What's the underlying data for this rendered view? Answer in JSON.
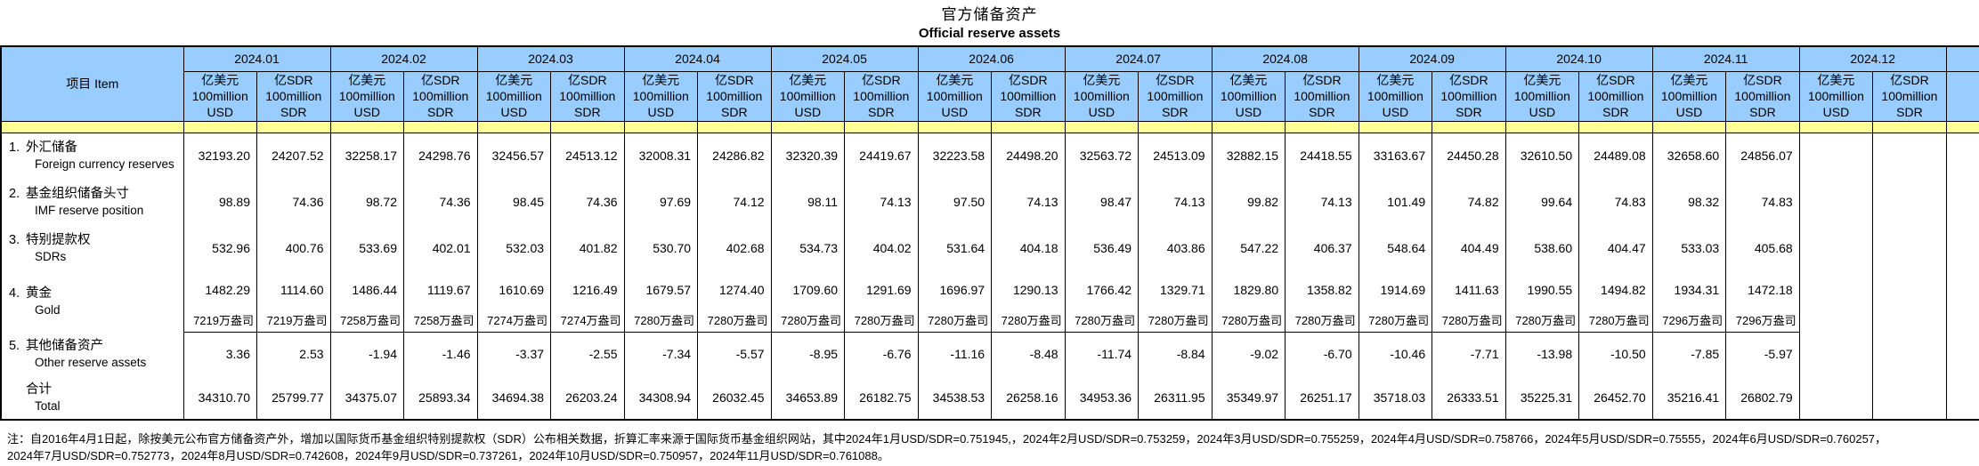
{
  "title_zh": "官方储备资产",
  "title_en": "Official reserve assets",
  "colors": {
    "header_blue": "#99CCFF",
    "band_yellow": "#FFFF99",
    "border": "#000000"
  },
  "table": {
    "item_header": "项目  Item",
    "months": [
      "2024.01",
      "2024.02",
      "2024.03",
      "2024.04",
      "2024.05",
      "2024.06",
      "2024.07",
      "2024.08",
      "2024.09",
      "2024.10",
      "2024.11",
      "2024.12"
    ],
    "usd_unit": [
      "亿美元",
      "100million",
      "USD"
    ],
    "sdr_unit": [
      "亿SDR",
      "100million",
      "SDR"
    ],
    "rows": [
      {
        "num": "1.",
        "zh": "外汇储备",
        "en": "Foreign currency reserves",
        "values": [
          "32193.20",
          "24207.52",
          "32258.17",
          "24298.76",
          "32456.57",
          "24513.12",
          "32008.31",
          "24286.82",
          "32320.39",
          "24419.67",
          "32223.58",
          "24498.20",
          "32563.72",
          "24513.09",
          "32882.15",
          "24418.55",
          "33163.67",
          "24450.28",
          "32610.50",
          "24489.08",
          "32658.60",
          "24856.07",
          "",
          ""
        ]
      },
      {
        "num": "2.",
        "zh": "基金组织储备头寸",
        "en": "IMF reserve position",
        "values": [
          "98.89",
          "74.36",
          "98.72",
          "74.36",
          "98.45",
          "74.36",
          "97.69",
          "74.12",
          "98.11",
          "74.13",
          "97.50",
          "74.13",
          "98.47",
          "74.13",
          "99.82",
          "74.13",
          "101.49",
          "74.82",
          "99.64",
          "74.83",
          "98.32",
          "74.83",
          "",
          ""
        ]
      },
      {
        "num": "3.",
        "zh": "特别提款权",
        "en": "SDRs",
        "values": [
          "532.96",
          "400.76",
          "533.69",
          "402.01",
          "532.03",
          "401.82",
          "530.70",
          "402.68",
          "534.73",
          "404.02",
          "531.64",
          "404.18",
          "536.49",
          "403.86",
          "547.22",
          "406.37",
          "548.64",
          "404.49",
          "538.60",
          "404.47",
          "533.03",
          "405.68",
          "",
          ""
        ]
      },
      {
        "num": "4.",
        "zh": "黄金",
        "en": "Gold",
        "values": [
          "1482.29",
          "1114.60",
          "1486.44",
          "1119.67",
          "1610.69",
          "1216.49",
          "1679.57",
          "1274.40",
          "1709.60",
          "1291.69",
          "1696.97",
          "1290.13",
          "1766.42",
          "1329.71",
          "1829.80",
          "1358.82",
          "1914.69",
          "1411.63",
          "1990.55",
          "1494.82",
          "1934.31",
          "1472.18",
          "",
          ""
        ],
        "ounces": [
          "7219万盎司",
          "7219万盎司",
          "7258万盎司",
          "7258万盎司",
          "7274万盎司",
          "7274万盎司",
          "7280万盎司",
          "7280万盎司",
          "7280万盎司",
          "7280万盎司",
          "7280万盎司",
          "7280万盎司",
          "7280万盎司",
          "7280万盎司",
          "7280万盎司",
          "7280万盎司",
          "7280万盎司",
          "7280万盎司",
          "7280万盎司",
          "7280万盎司",
          "7296万盎司",
          "7296万盎司",
          "",
          ""
        ]
      },
      {
        "num": "5.",
        "zh": "其他储备资产",
        "en": "Other reserve assets",
        "values": [
          "3.36",
          "2.53",
          "-1.94",
          "-1.46",
          "-3.37",
          "-2.55",
          "-7.34",
          "-5.57",
          "-8.95",
          "-6.76",
          "-11.16",
          "-8.48",
          "-11.74",
          "-8.84",
          "-9.02",
          "-6.70",
          "-10.46",
          "-7.71",
          "-13.98",
          "-10.50",
          "-7.85",
          "-5.97",
          "",
          ""
        ]
      },
      {
        "num": "",
        "zh": "合计",
        "en": "Total",
        "is_total": true,
        "values": [
          "34310.70",
          "25799.77",
          "34375.07",
          "25893.34",
          "34694.38",
          "26203.24",
          "34308.94",
          "26032.45",
          "34653.89",
          "26182.75",
          "34538.53",
          "26258.16",
          "34953.36",
          "26311.95",
          "35349.97",
          "26251.17",
          "35718.03",
          "26333.51",
          "35225.31",
          "26452.70",
          "35216.41",
          "26802.79",
          "",
          ""
        ]
      }
    ]
  },
  "footnote": {
    "line1": "注：自2016年4月1日起，除按美元公布官方储备资产外，增加以国际货币基金组织特别提款权（SDR）公布相关数据，折算汇率来源于国际货币基金组织网站，其中2024年1月USD/SDR=0.751945,，2024年2月USD/SDR=0.753259，2024年3月USD/SDR=0.755259，2024年4月USD/SDR=0.758766，2024年5月USD/SDR=0.75555，2024年6月USD/SDR=0.760257，",
    "line2": "2024年7月USD/SDR=0.752773，2024年8月USD/SDR=0.742608，2024年9月USD/SDR=0.737261，2024年10月USD/SDR=0.750957，2024年11月USD/SDR=0.761088。"
  }
}
